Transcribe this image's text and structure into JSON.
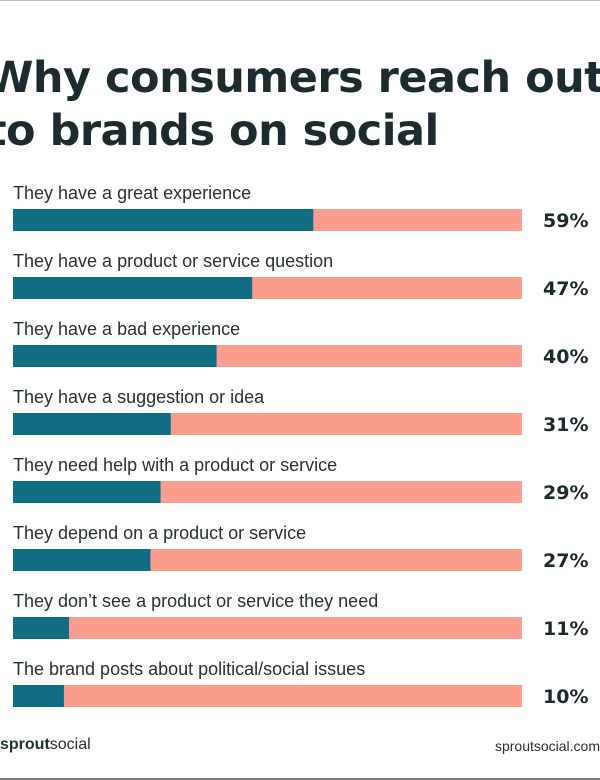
{
  "title_lines": [
    "Why consumers reach out",
    "to brands on social"
  ],
  "footer": {
    "logo_bold": "sprout",
    "logo_regular": "social",
    "url": "sproutsocial.com"
  },
  "colors": {
    "filled": "#116e82",
    "remaining": "#fa9d8f",
    "text": "#1d2b2f"
  },
  "chart_data": {
    "type": "bar",
    "orientation": "horizontal",
    "title": "Why consumers reach out to brands on social",
    "categories": [
      "They have a great experience",
      "They have a product or service question",
      "They have a bad experience",
      "They have a suggestion or idea",
      "They need help with a product or service",
      "They depend on a product or service",
      "They don’t see a product or service they need",
      "The brand posts about political/social issues"
    ],
    "values": [
      59,
      47,
      40,
      31,
      29,
      27,
      11,
      10
    ],
    "value_labels": [
      "59%",
      "47%",
      "40%",
      "31%",
      "29%",
      "27%",
      "11%",
      "10%"
    ],
    "xlim": [
      0,
      100
    ],
    "unit": "%",
    "grid": false,
    "legend": "none"
  }
}
